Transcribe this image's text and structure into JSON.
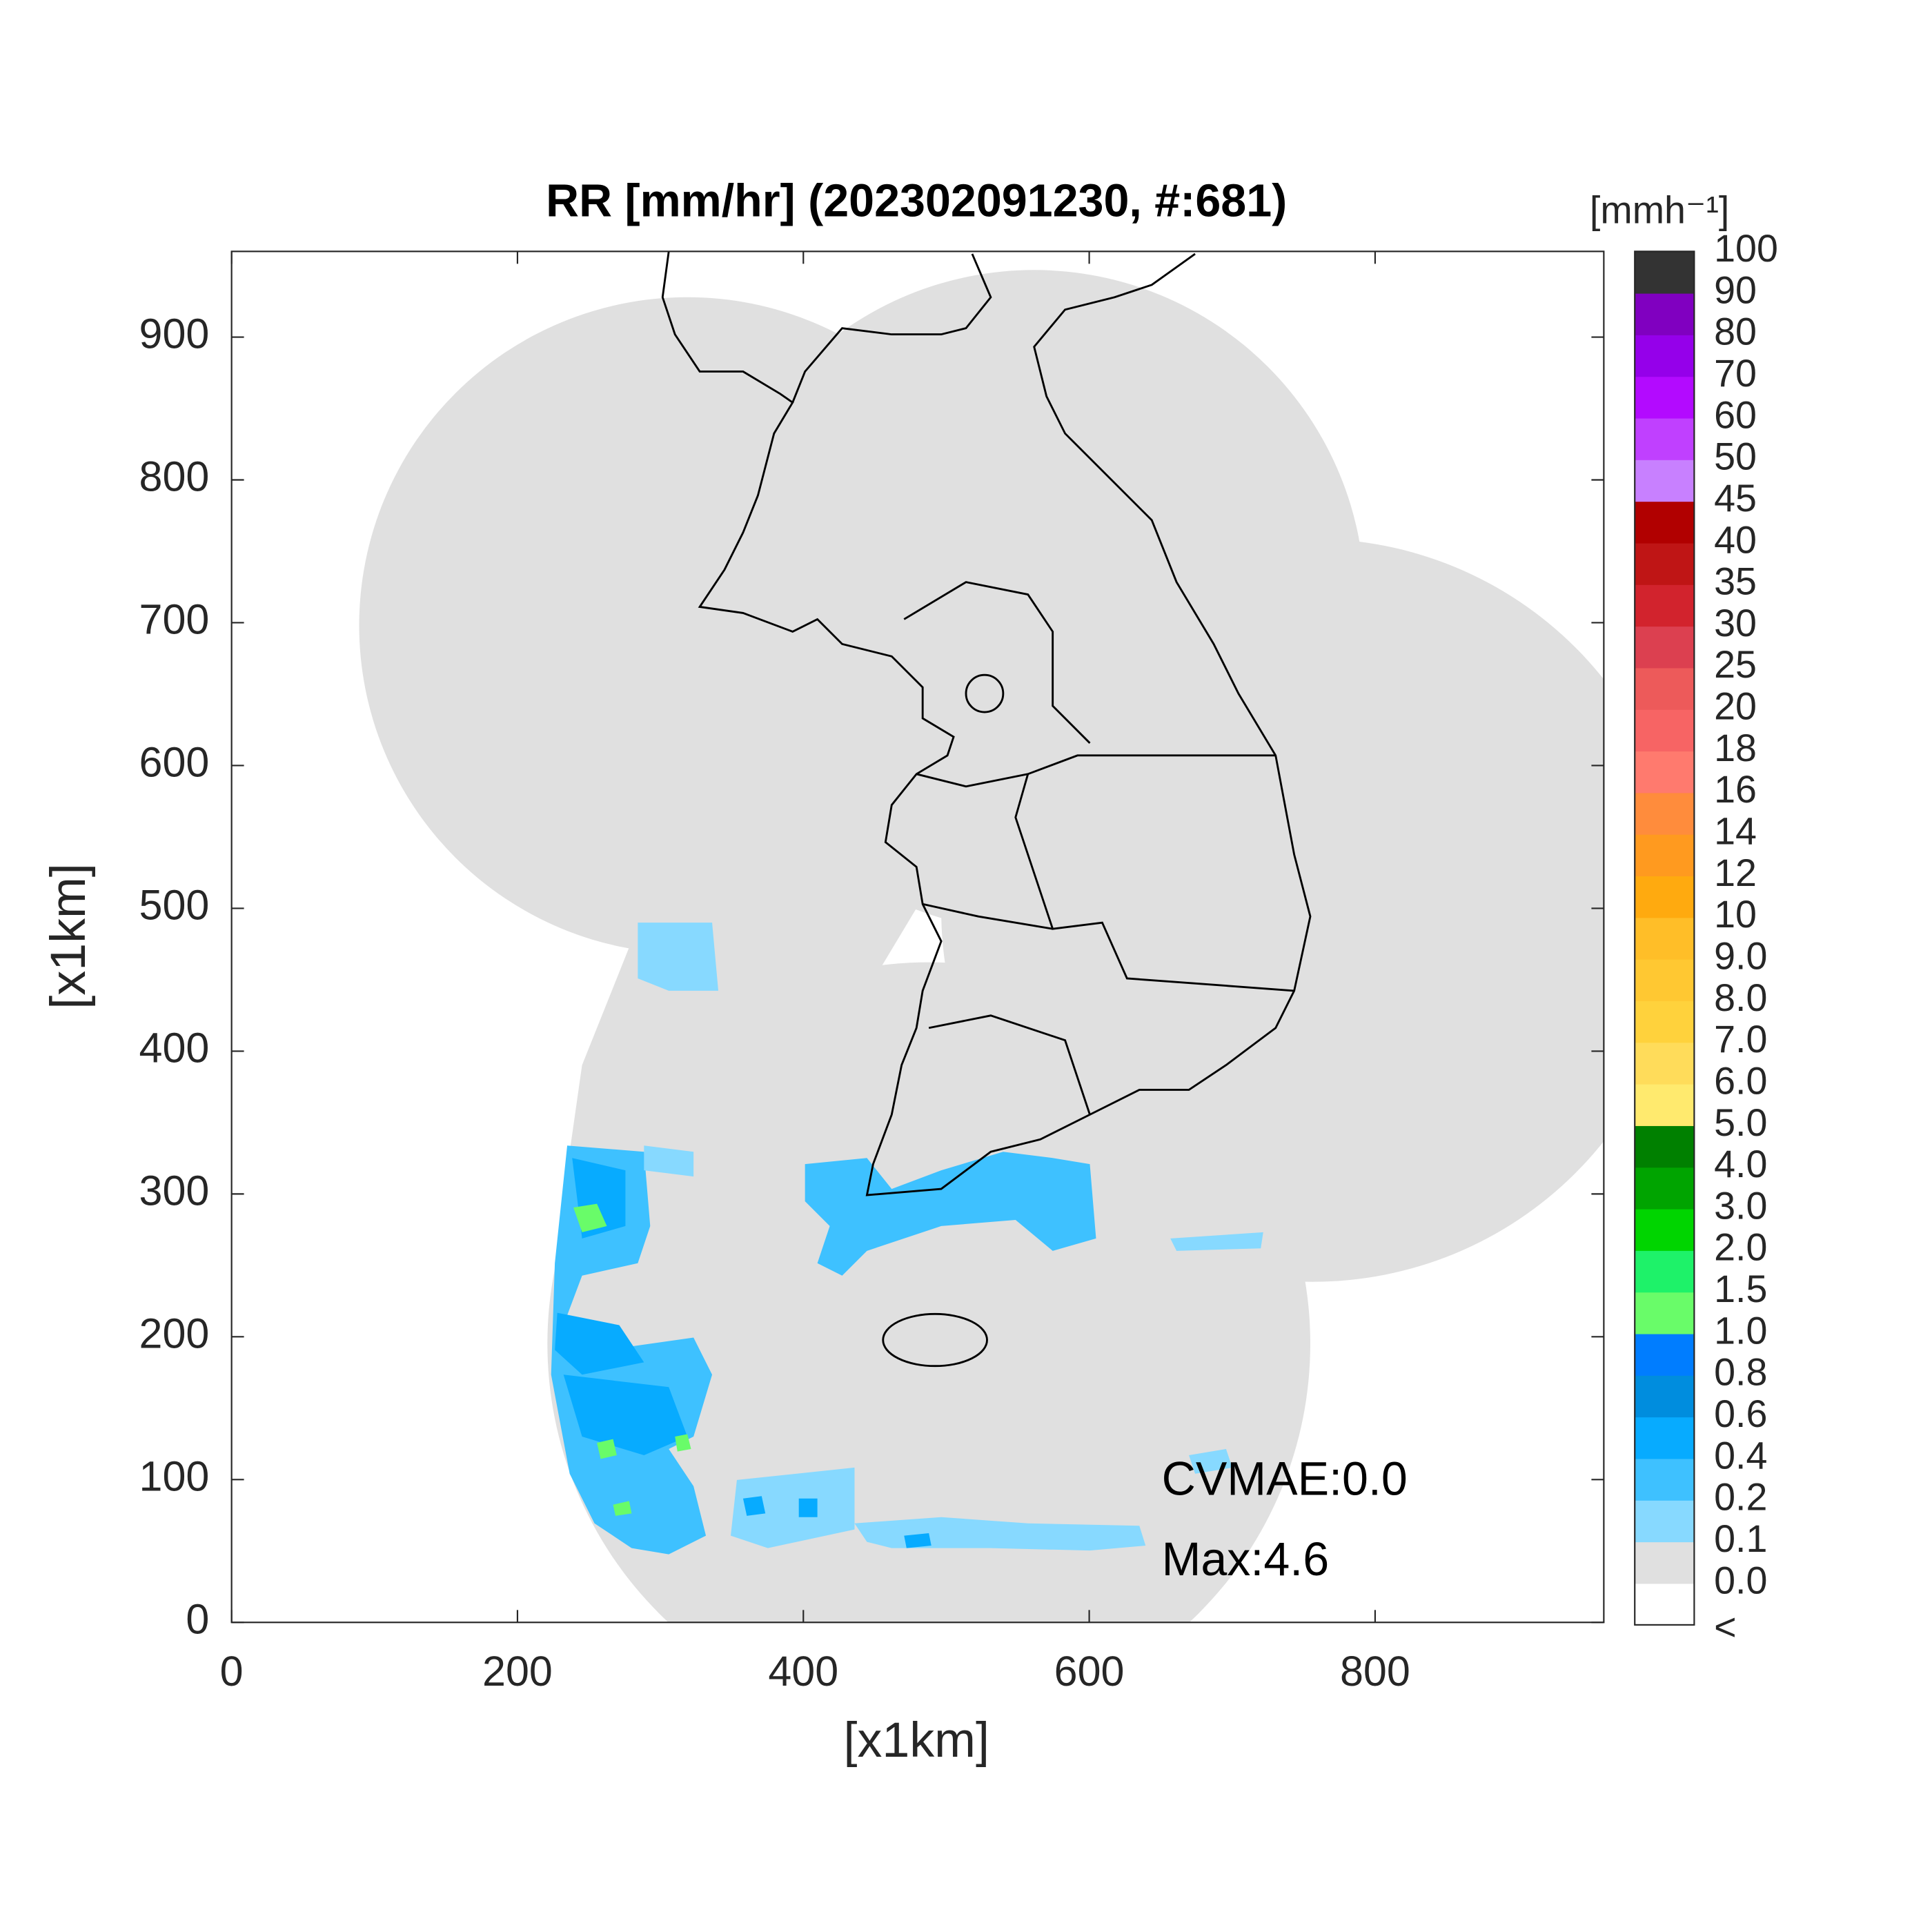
{
  "chart_data": {
    "type": "map",
    "title": "RR [mm/hr] (202302091230, #:681)",
    "xlabel": "[x1km]",
    "ylabel": "[x1km]",
    "xlim": [
      0,
      960
    ],
    "ylim": [
      0,
      960
    ],
    "xticks": [
      0,
      200,
      400,
      600,
      800
    ],
    "yticks": [
      0,
      100,
      200,
      300,
      400,
      500,
      600,
      700,
      800,
      900
    ],
    "annotations": [
      "CVMAE:0.0",
      "Max:4.6"
    ],
    "colorbar": {
      "title": "[mmh⁻¹]",
      "labels": [
        "<",
        "0.0",
        "0.1",
        "0.2",
        "0.4",
        "0.6",
        "0.8",
        "1.0",
        "1.5",
        "2.0",
        "3.0",
        "4.0",
        "5.0",
        "6.0",
        "7.0",
        "8.0",
        "9.0",
        "10",
        "12",
        "14",
        "16",
        "18",
        "20",
        "25",
        "30",
        "35",
        "40",
        "45",
        "50",
        "60",
        "70",
        "80",
        "90",
        "100"
      ],
      "colors": [
        "#ffffff",
        "#e0e0e0",
        "#87d9ff",
        "#3ec1ff",
        "#07abff",
        "#008dde",
        "#007dff",
        "#69fc69",
        "#1ef269",
        "#00d500",
        "#00a400",
        "#008000",
        "#ffea6e",
        "#ffdc5a",
        "#ffd23c",
        "#ffc832",
        "#ffbe28",
        "#ffaa0f",
        "#ff9a1f",
        "#ff8c3c",
        "#ff7a6e",
        "#f76464",
        "#ed5a5a",
        "#dc4050",
        "#d2232d",
        "#bf1515",
        "#b10000",
        "#c880ff",
        "#c040ff",
        "#b30aff",
        "#9500ea",
        "#8000c0",
        "#333333"
      ]
    }
  }
}
